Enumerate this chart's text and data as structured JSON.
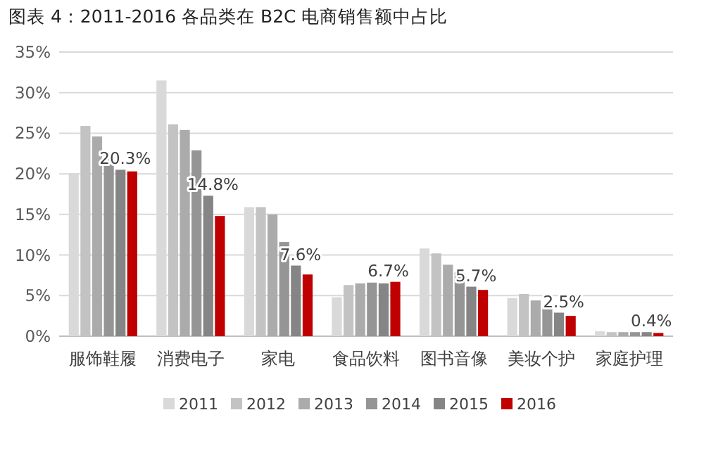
{
  "chart_data": {
    "type": "bar",
    "title": "图表 4：2011-2016 各品类在 B2C 电商销售额中占比",
    "categories": [
      "服饰鞋履",
      "消费电子",
      "家电",
      "食品饮料",
      "图书音像",
      "美妆个护",
      "家庭护理"
    ],
    "series": [
      {
        "name": "2011",
        "color": "#d9d9d9",
        "values": [
          20.1,
          31.5,
          15.9,
          4.8,
          10.8,
          4.7,
          0.6
        ]
      },
      {
        "name": "2012",
        "color": "#c3c3c3",
        "values": [
          25.9,
          26.1,
          15.9,
          6.3,
          10.2,
          5.2,
          0.5
        ]
      },
      {
        "name": "2013",
        "color": "#ababab",
        "values": [
          24.6,
          25.4,
          15.0,
          6.5,
          8.8,
          4.4,
          0.5
        ]
      },
      {
        "name": "2014",
        "color": "#959595",
        "values": [
          22.4,
          22.9,
          11.6,
          6.6,
          7.9,
          3.4,
          0.5
        ]
      },
      {
        "name": "2015",
        "color": "#858585",
        "values": [
          20.5,
          17.3,
          8.7,
          6.5,
          6.1,
          2.9,
          0.5
        ]
      },
      {
        "name": "2016",
        "color": "#c00000",
        "values": [
          20.3,
          14.8,
          7.6,
          6.7,
          5.7,
          2.5,
          0.4
        ],
        "value_labels": [
          "20.3%",
          "14.8%",
          "7.6%",
          "6.7%",
          "5.7%",
          "2.5%",
          "0.4%"
        ]
      }
    ],
    "ylim": [
      0,
      35
    ],
    "yticks": [
      {
        "value": 0,
        "label": "0%"
      },
      {
        "value": 5,
        "label": "5%"
      },
      {
        "value": 10,
        "label": "10%"
      },
      {
        "value": 15,
        "label": "15%"
      },
      {
        "value": 20,
        "label": "20%"
      },
      {
        "value": 25,
        "label": "25%"
      },
      {
        "value": 30,
        "label": "30%"
      },
      {
        "value": 35,
        "label": "35%"
      }
    ],
    "grid": "y",
    "legend": "bottom"
  }
}
